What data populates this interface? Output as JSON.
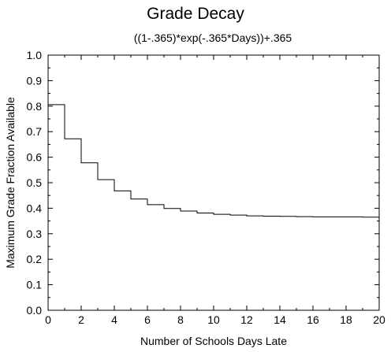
{
  "chart_data": {
    "type": "line",
    "step": true,
    "title": "Grade Decay",
    "subtitle": "((1-.365)*exp(-.365*Days))+.365",
    "xlabel": "Number of Schools Days Late",
    "ylabel": "Maximum Grade Fraction Available",
    "xlim": [
      0,
      20
    ],
    "ylim": [
      0.0,
      1.0
    ],
    "x_ticks": [
      "0",
      "2",
      "4",
      "6",
      "8",
      "10",
      "12",
      "14",
      "16",
      "18",
      "20"
    ],
    "y_ticks": [
      "0.0",
      "0.1",
      "0.2",
      "0.3",
      "0.4",
      "0.5",
      "0.6",
      "0.7",
      "0.8",
      "0.9",
      "1.0"
    ],
    "grid": false,
    "legend": "none",
    "line_color": "#000000",
    "series": [
      {
        "x": [
          0,
          1,
          2,
          3,
          4,
          5,
          6,
          7,
          8,
          9,
          10,
          11,
          12,
          13,
          14,
          15,
          16,
          17,
          18,
          19,
          20
        ],
        "values": [
          0.806,
          0.672,
          0.578,
          0.512,
          0.468,
          0.436,
          0.414,
          0.399,
          0.389,
          0.381,
          0.376,
          0.373,
          0.37,
          0.369,
          0.368,
          0.367,
          0.366,
          0.366,
          0.366,
          0.365,
          0.365
        ]
      }
    ]
  }
}
